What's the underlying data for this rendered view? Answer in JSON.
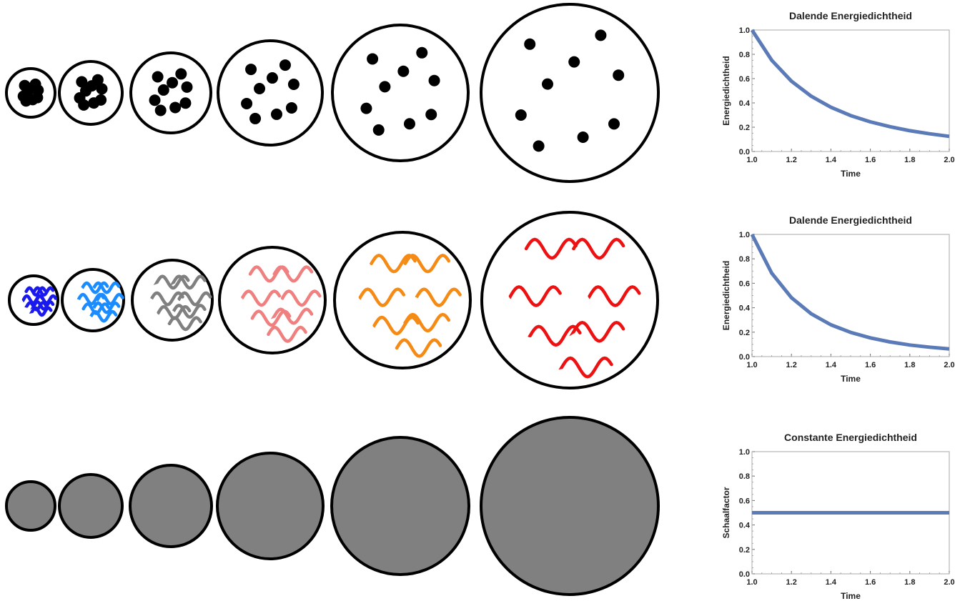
{
  "colors": {
    "outline": "#000000",
    "matter": "#000000",
    "vacuum_fill": "#808080",
    "curve": "#5b7bb8",
    "frame": "#aaaaaa",
    "radiation": [
      "#1a1aee",
      "#1a8cff",
      "#808080",
      "#f08080",
      "#f58a14",
      "#ee1111"
    ]
  },
  "rows": [
    {
      "kind": "matter",
      "bubble_count": 6
    },
    {
      "kind": "radiation",
      "bubble_count": 6
    },
    {
      "kind": "vacuum",
      "bubble_count": 6
    }
  ],
  "chart_data": [
    {
      "type": "line",
      "title": "Dalende Energiedichtheid",
      "xlabel": "Time",
      "ylabel": "Energiedichtheid",
      "xlim": [
        1.0,
        2.0
      ],
      "ylim": [
        0.0,
        1.0
      ],
      "xticks": [
        "1.0",
        "1.2",
        "1.4",
        "1.6",
        "1.8",
        "2.0"
      ],
      "yticks": [
        "0.0",
        "0.2",
        "0.4",
        "0.6",
        "0.8",
        "1.0"
      ],
      "series": [
        {
          "x": [
            1.0,
            1.1,
            1.2,
            1.3,
            1.4,
            1.5,
            1.6,
            1.7,
            1.8,
            1.9,
            2.0
          ],
          "y": [
            1.0,
            0.751,
            0.579,
            0.455,
            0.364,
            0.296,
            0.244,
            0.204,
            0.171,
            0.146,
            0.125
          ]
        }
      ]
    },
    {
      "type": "line",
      "title": "Dalende Energiedichtheid",
      "xlabel": "Time",
      "ylabel": "Energiedichtheid",
      "xlim": [
        1.0,
        2.0
      ],
      "ylim": [
        0.0,
        1.0
      ],
      "xticks": [
        "1.0",
        "1.2",
        "1.4",
        "1.6",
        "1.8",
        "2.0"
      ],
      "yticks": [
        "0.0",
        "0.2",
        "0.4",
        "0.6",
        "0.8",
        "1.0"
      ],
      "series": [
        {
          "x": [
            1.0,
            1.1,
            1.2,
            1.3,
            1.4,
            1.5,
            1.6,
            1.7,
            1.8,
            1.9,
            2.0
          ],
          "y": [
            1.0,
            0.683,
            0.482,
            0.35,
            0.26,
            0.198,
            0.153,
            0.12,
            0.095,
            0.077,
            0.0625
          ]
        }
      ]
    },
    {
      "type": "line",
      "title": "Constante Energiedichtheid",
      "xlabel": "Time",
      "ylabel": "Schaalfactor",
      "xlim": [
        1.0,
        2.0
      ],
      "ylim": [
        0.0,
        1.0
      ],
      "xticks": [
        "1.0",
        "1.2",
        "1.4",
        "1.6",
        "1.8",
        "2.0"
      ],
      "yticks": [
        "0.0",
        "0.2",
        "0.4",
        "0.6",
        "0.8",
        "1.0"
      ],
      "series": [
        {
          "x": [
            1.0,
            2.0
          ],
          "y": [
            0.5,
            0.5
          ]
        }
      ]
    }
  ]
}
